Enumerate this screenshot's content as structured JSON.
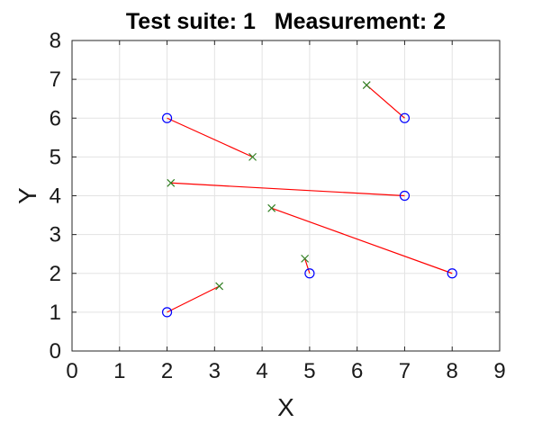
{
  "chart_data": {
    "type": "scatter",
    "title": "Test suite: 1   Measurement: 2",
    "xlabel": "X",
    "ylabel": "Y",
    "xlim": [
      0,
      9
    ],
    "ylim": [
      0,
      8
    ],
    "xticks": [
      "0",
      "1",
      "2",
      "3",
      "4",
      "5",
      "6",
      "7",
      "8",
      "9"
    ],
    "yticks": [
      "0",
      "1",
      "2",
      "3",
      "4",
      "5",
      "6",
      "7",
      "8"
    ],
    "grid": true,
    "colors": {
      "circle_marker": "#0000ff",
      "cross_marker": "#2e7d1f",
      "connector": "#ff0000"
    },
    "series": [
      {
        "marker": "circle",
        "x": [
          2,
          7,
          7,
          8,
          5,
          2
        ],
        "y": [
          6,
          6,
          4,
          2,
          2,
          1
        ]
      },
      {
        "marker": "cross",
        "x": [
          3.8,
          6.2,
          2.08,
          4.2,
          4.9,
          3.1
        ],
        "y": [
          5.0,
          6.85,
          4.33,
          3.68,
          2.38,
          1.67
        ]
      }
    ],
    "connections": [
      {
        "from": [
          2,
          6
        ],
        "to": [
          3.8,
          5.0
        ]
      },
      {
        "from": [
          7,
          6
        ],
        "to": [
          6.2,
          6.85
        ]
      },
      {
        "from": [
          7,
          4
        ],
        "to": [
          2.08,
          4.33
        ]
      },
      {
        "from": [
          8,
          2
        ],
        "to": [
          4.2,
          3.68
        ]
      },
      {
        "from": [
          5,
          2
        ],
        "to": [
          4.9,
          2.38
        ]
      },
      {
        "from": [
          2,
          1
        ],
        "to": [
          3.1,
          1.67
        ]
      }
    ]
  }
}
